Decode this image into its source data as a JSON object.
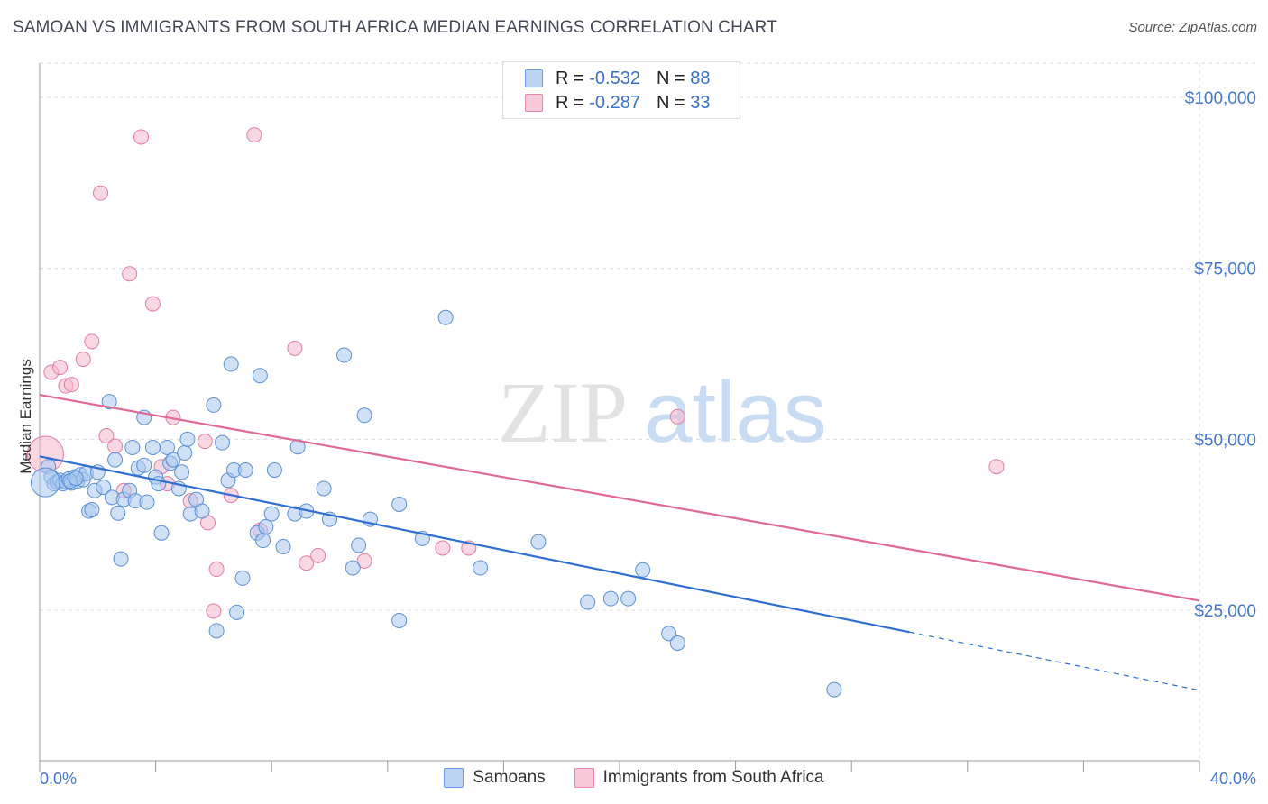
{
  "title": "SAMOAN VS IMMIGRANTS FROM SOUTH AFRICA MEDIAN EARNINGS CORRELATION CHART",
  "source": "Source: ZipAtlas.com",
  "watermark": {
    "zip": "ZIP",
    "atlas": "atlas"
  },
  "legend_top": [
    {
      "r_label": "R = ",
      "r_value": "-0.532",
      "n_label": "N = ",
      "n_value": "88"
    },
    {
      "r_label": "R = ",
      "r_value": "-0.287",
      "n_label": "N = ",
      "n_value": "33"
    }
  ],
  "chart_data": {
    "type": "scatter",
    "ylabel": "Median Earnings",
    "xlabel": "",
    "xlim": [
      0,
      40
    ],
    "ylim": [
      3000,
      105000
    ],
    "x_tick_labels": [
      "0.0%",
      "40.0%"
    ],
    "y_ticks": [
      25000,
      50000,
      75000,
      100000
    ],
    "y_tick_labels": [
      "$25,000",
      "$50,000",
      "$75,000",
      "$100,000"
    ],
    "grid": true,
    "colors": {
      "samoans_fill": "#a9c8f0",
      "samoans_stroke": "#5b8fd6",
      "samoans_line": "#2f6fd0",
      "sa_fill": "#f6b8cc",
      "sa_stroke": "#e07fa0",
      "sa_line": "#e06a93",
      "grid": "#dddddd",
      "axis": "#999999"
    },
    "legend": [
      "Samoans",
      "Immigrants from South Africa"
    ],
    "series": [
      {
        "name": "Samoans",
        "trend": {
          "x0": 0,
          "y0": 47500,
          "x1": 30,
          "y1": 21800,
          "dash_to_x": 40,
          "dash_to_y": 13300
        },
        "points": [
          [
            0.3,
            46000
          ],
          [
            0.4,
            44500
          ],
          [
            0.5,
            43500
          ],
          [
            0.6,
            43800
          ],
          [
            0.7,
            44000
          ],
          [
            0.8,
            43500
          ],
          [
            0.9,
            43800
          ],
          [
            1.0,
            44200
          ],
          [
            1.1,
            43600
          ],
          [
            1.2,
            44500
          ],
          [
            1.3,
            43900
          ],
          [
            1.4,
            44800
          ],
          [
            1.5,
            44100
          ],
          [
            1.6,
            45000
          ],
          [
            1.7,
            39500
          ],
          [
            1.8,
            39700
          ],
          [
            1.9,
            42500
          ],
          [
            2.0,
            45200
          ],
          [
            2.2,
            43000
          ],
          [
            2.4,
            55500
          ],
          [
            2.5,
            41500
          ],
          [
            2.6,
            47000
          ],
          [
            2.7,
            39200
          ],
          [
            2.8,
            32500
          ],
          [
            2.9,
            41200
          ],
          [
            3.1,
            42500
          ],
          [
            3.2,
            48800
          ],
          [
            3.3,
            41000
          ],
          [
            3.4,
            45800
          ],
          [
            3.6,
            46200
          ],
          [
            3.6,
            53200
          ],
          [
            3.7,
            40800
          ],
          [
            3.9,
            48800
          ],
          [
            4.0,
            44500
          ],
          [
            4.1,
            43500
          ],
          [
            4.2,
            36300
          ],
          [
            4.4,
            48800
          ],
          [
            4.5,
            46500
          ],
          [
            4.6,
            47000
          ],
          [
            4.8,
            42800
          ],
          [
            4.9,
            45200
          ],
          [
            5.0,
            48000
          ],
          [
            5.1,
            50000
          ],
          [
            5.2,
            39100
          ],
          [
            5.4,
            41200
          ],
          [
            5.6,
            39500
          ],
          [
            6.0,
            55000
          ],
          [
            6.1,
            22000
          ],
          [
            6.3,
            49500
          ],
          [
            6.5,
            44000
          ],
          [
            6.6,
            61000
          ],
          [
            6.7,
            45500
          ],
          [
            6.8,
            24700
          ],
          [
            7.0,
            29700
          ],
          [
            7.1,
            45500
          ],
          [
            7.5,
            36300
          ],
          [
            7.6,
            59300
          ],
          [
            7.7,
            35200
          ],
          [
            7.8,
            37200
          ],
          [
            8.0,
            39100
          ],
          [
            8.1,
            45500
          ],
          [
            8.4,
            34300
          ],
          [
            8.8,
            39100
          ],
          [
            8.9,
            48900
          ],
          [
            9.2,
            39500
          ],
          [
            9.8,
            42800
          ],
          [
            10.0,
            38300
          ],
          [
            10.5,
            62300
          ],
          [
            10.8,
            31200
          ],
          [
            11.0,
            34500
          ],
          [
            11.2,
            53500
          ],
          [
            11.4,
            38300
          ],
          [
            12.4,
            40500
          ],
          [
            12.4,
            23500
          ],
          [
            13.2,
            35500
          ],
          [
            14.0,
            67800
          ],
          [
            15.2,
            31200
          ],
          [
            17.2,
            35000
          ],
          [
            18.9,
            26200
          ],
          [
            19.7,
            26700
          ],
          [
            20.3,
            26700
          ],
          [
            20.8,
            30900
          ],
          [
            21.7,
            21600
          ],
          [
            22.0,
            20200
          ],
          [
            27.4,
            13400
          ],
          [
            0.2,
            43700
          ],
          [
            1.05,
            43900
          ],
          [
            1.25,
            44300
          ]
        ]
      },
      {
        "name": "Immigrants from South Africa",
        "trend": {
          "x0": 0,
          "y0": 56500,
          "x1": 40,
          "y1": 26400
        },
        "points": [
          [
            0.2,
            47800
          ],
          [
            0.4,
            59800
          ],
          [
            0.7,
            60500
          ],
          [
            0.9,
            57800
          ],
          [
            1.1,
            58000
          ],
          [
            1.5,
            61700
          ],
          [
            1.8,
            64300
          ],
          [
            2.1,
            86000
          ],
          [
            2.3,
            50500
          ],
          [
            2.6,
            49000
          ],
          [
            2.9,
            42500
          ],
          [
            3.1,
            74200
          ],
          [
            3.5,
            94200
          ],
          [
            3.9,
            69800
          ],
          [
            4.2,
            46000
          ],
          [
            4.4,
            43500
          ],
          [
            4.6,
            53200
          ],
          [
            5.2,
            41000
          ],
          [
            5.7,
            49700
          ],
          [
            5.8,
            37800
          ],
          [
            6.0,
            24900
          ],
          [
            6.1,
            31000
          ],
          [
            6.6,
            41800
          ],
          [
            7.4,
            94500
          ],
          [
            7.6,
            36700
          ],
          [
            8.8,
            63300
          ],
          [
            9.2,
            31900
          ],
          [
            9.6,
            33000
          ],
          [
            11.2,
            32200
          ],
          [
            13.9,
            34100
          ],
          [
            14.8,
            34100
          ],
          [
            22.0,
            53300
          ],
          [
            33.0,
            46000
          ]
        ]
      }
    ]
  }
}
